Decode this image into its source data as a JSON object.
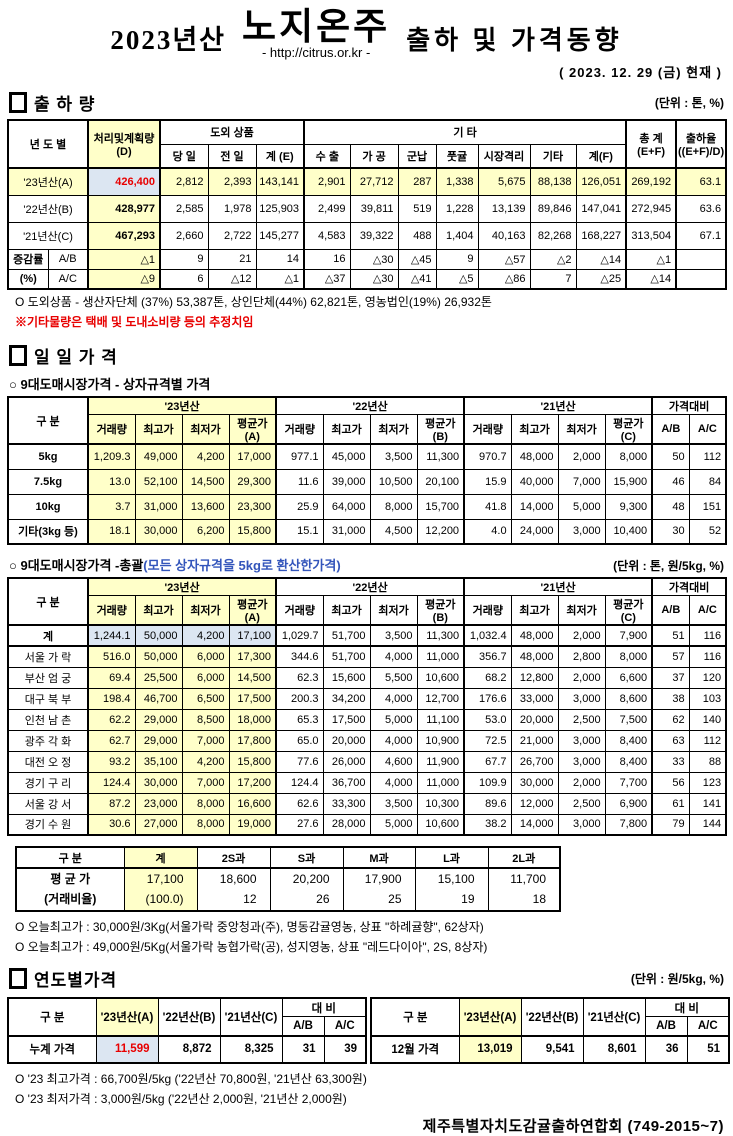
{
  "colors": {
    "highlight_yellow": "#FFFFC9",
    "highlight_blue": "#DCE6F2",
    "red": "#E80000",
    "blue": "#3355BB"
  },
  "header": {
    "title_year": "2023년산",
    "title_main": "노지온주",
    "title_url": "- http://citrus.or.kr -",
    "title_rest": "출하 및 가격동향",
    "date": "( 2023.  12.  29 (금) 현재 )"
  },
  "shipment": {
    "title": "출 하 량",
    "unit": "(단위 : 톤, %)",
    "table": {
      "head": [
        [
          {
            "t": "년 도 별",
            "cs": 2,
            "rs": 2
          },
          {
            "t": "처리및계획량\n(D)",
            "rs": 2
          },
          {
            "t": "도외 상품",
            "cs": 3
          },
          {
            "t": "기            타",
            "cs": 7
          },
          {
            "t": "총  계\n(E+F)",
            "rs": 2
          },
          {
            "t": "출하율\n((E+F)/D)",
            "rs": 2
          }
        ],
        [
          "당 일",
          "전 일",
          "계 (E)",
          "수 출",
          "가 공",
          "군납",
          "풋귤",
          "시장격리",
          "기타",
          "계(F)"
        ]
      ],
      "rows": [
        [
          {
            "t": "'23년산(A)",
            "cs": 2
          },
          "426,400",
          "2,812",
          "2,393",
          "143,141",
          "2,901",
          "27,712",
          "287",
          "1,338",
          "5,675",
          "88,138",
          "126,051",
          "269,192",
          "63.1"
        ],
        [
          {
            "t": "'22년산(B)",
            "cs": 2
          },
          "428,977",
          "2,585",
          "1,978",
          "125,903",
          "2,499",
          "39,811",
          "519",
          "1,228",
          "13,139",
          "89,846",
          "147,041",
          "272,945",
          "63.6"
        ],
        [
          {
            "t": "'21년산(C)",
            "cs": 2
          },
          "467,293",
          "2,660",
          "2,722",
          "145,277",
          "4,583",
          "39,322",
          "488",
          "1,404",
          "40,163",
          "82,268",
          "168,227",
          "313,504",
          "67.1"
        ],
        [
          "증감률",
          "A/B",
          "△1",
          "9",
          "21",
          "14",
          "16",
          "△30",
          "△45",
          "9",
          "△57",
          "△2",
          "△14",
          "△1",
          ""
        ],
        [
          "(%)",
          "A/C",
          "△9",
          "6",
          "△12",
          "△1",
          "△37",
          "△30",
          "△41",
          "△5",
          "△86",
          "7",
          "△25",
          "△14",
          ""
        ]
      ]
    },
    "note1": "O 도외상품 - 생산자단체 (37%) 53,387톤, 상인단체(44%) 62,821톤, 영농법인(19%) 26,932톤",
    "note2": "※기타물량은 택배 및 도내소비량 등의 추정치임"
  },
  "daily": {
    "title": "일 일 가 격",
    "box_heading": "○ 9대도매시장가격 - 상자규격별 가격",
    "box_table": {
      "head": [
        [
          {
            "t": "구  분",
            "rs": 2
          },
          {
            "t": "'23년산",
            "cs": 4
          },
          {
            "t": "'22년산",
            "cs": 4
          },
          {
            "t": "'21년산",
            "cs": 4
          },
          {
            "t": "가격대비",
            "cs": 2
          }
        ],
        [
          "거래량",
          "최고가",
          "최저가",
          "평균가(A)",
          "거래량",
          "최고가",
          "최저가",
          "평균가(B)",
          "거래량",
          "최고가",
          "최저가",
          "평균가(C)",
          "A/B",
          "A/C"
        ]
      ],
      "rows": [
        [
          "5kg",
          "1,209.3",
          "49,000",
          "4,200",
          "17,000",
          "977.1",
          "45,000",
          "3,500",
          "11,300",
          "970.7",
          "48,000",
          "2,000",
          "8,000",
          "50",
          "112"
        ],
        [
          "7.5kg",
          "13.0",
          "52,100",
          "14,500",
          "29,300",
          "11.6",
          "39,000",
          "10,500",
          "20,100",
          "15.9",
          "40,000",
          "7,000",
          "15,900",
          "46",
          "84"
        ],
        [
          "10kg",
          "3.7",
          "31,000",
          "13,600",
          "23,300",
          "25.9",
          "64,000",
          "8,000",
          "15,700",
          "41.8",
          "14,000",
          "5,000",
          "9,300",
          "48",
          "151"
        ],
        [
          "기타(3kg 등)",
          "18.1",
          "30,000",
          "6,200",
          "15,800",
          "15.1",
          "31,000",
          "4,500",
          "12,200",
          "4.0",
          "24,000",
          "3,000",
          "10,400",
          "30",
          "52"
        ]
      ]
    },
    "overall_heading": "○ 9대도매시장가격 -총괄",
    "overall_heading_note": "(모든 상자규격을 5kg로 환산한가격)",
    "overall_unit": "(단위 : 톤, 원/5kg, %)",
    "overall_table": {
      "head": [
        [
          {
            "t": "구  분",
            "rs": 2
          },
          {
            "t": "'23년산",
            "cs": 4
          },
          {
            "t": "'22년산",
            "cs": 4
          },
          {
            "t": "'21년산",
            "cs": 4
          },
          {
            "t": "가격대비",
            "cs": 2
          }
        ],
        [
          "거래량",
          "최고가",
          "최저가",
          "평균가(A)",
          "거래량",
          "최고가",
          "최저가",
          "평균가(B)",
          "거래량",
          "최고가",
          "최저가",
          "평균가(C)",
          "A/B",
          "A/C"
        ]
      ],
      "rows": [
        [
          "계",
          "1,244.1",
          "50,000",
          "4,200",
          "17,100",
          "1,029.7",
          "51,700",
          "3,500",
          "11,300",
          "1,032.4",
          "48,000",
          "2,000",
          "7,900",
          "51",
          "116"
        ],
        [
          "서울 가 락",
          "516.0",
          "50,000",
          "6,000",
          "17,300",
          "344.6",
          "51,700",
          "4,000",
          "11,000",
          "356.7",
          "48,000",
          "2,800",
          "8,000",
          "57",
          "116"
        ],
        [
          "부산 엄 궁",
          "69.4",
          "25,500",
          "6,000",
          "14,500",
          "62.3",
          "15,600",
          "5,500",
          "10,600",
          "68.2",
          "12,800",
          "2,000",
          "6,600",
          "37",
          "120"
        ],
        [
          "대구 북 부",
          "198.4",
          "46,700",
          "6,500",
          "17,500",
          "200.3",
          "34,200",
          "4,000",
          "12,700",
          "176.6",
          "33,000",
          "3,000",
          "8,600",
          "38",
          "103"
        ],
        [
          "인천 남 촌",
          "62.2",
          "29,000",
          "8,500",
          "18,000",
          "65.3",
          "17,500",
          "5,000",
          "11,100",
          "53.0",
          "20,000",
          "2,500",
          "7,500",
          "62",
          "140"
        ],
        [
          "광주 각 화",
          "62.7",
          "29,000",
          "7,000",
          "17,800",
          "65.0",
          "20,000",
          "4,000",
          "10,900",
          "72.5",
          "21,000",
          "3,000",
          "8,400",
          "63",
          "112"
        ],
        [
          "대전 오 정",
          "93.2",
          "35,100",
          "4,200",
          "15,800",
          "77.6",
          "26,000",
          "4,600",
          "11,900",
          "67.7",
          "26,700",
          "3,000",
          "8,400",
          "33",
          "88"
        ],
        [
          "경기 구 리",
          "124.4",
          "30,000",
          "7,000",
          "17,200",
          "124.4",
          "36,700",
          "4,000",
          "11,000",
          "109.9",
          "30,000",
          "2,000",
          "7,700",
          "56",
          "123"
        ],
        [
          "서울 강 서",
          "87.2",
          "23,000",
          "8,000",
          "16,600",
          "62.6",
          "33,300",
          "3,500",
          "10,300",
          "89.6",
          "12,000",
          "2,500",
          "6,900",
          "61",
          "141"
        ],
        [
          "경기 수 원",
          "30.6",
          "27,000",
          "8,000",
          "19,000",
          "27.6",
          "28,000",
          "5,000",
          "10,600",
          "38.2",
          "14,000",
          "3,000",
          "7,800",
          "79",
          "144"
        ]
      ]
    },
    "grade_table": {
      "head": [
        [
          "구  분",
          "계",
          "2S과",
          "S과",
          "M과",
          "L과",
          "2L과"
        ]
      ],
      "rows": [
        [
          "평 균 가\n(거래비율)",
          "17,100\n(100.0)",
          "18,600\n12",
          "20,200\n26",
          "17,900\n25",
          "15,100\n19",
          "11,700\n18"
        ]
      ]
    },
    "note1": "O 오늘최고가  : 30,000원/3Kg(서울가락 중앙청과(주), 명동감귤영농, 상표 \"하례귤향\", 62상자)",
    "note2": "O 오늘최고가  : 49,000원/5Kg(서울가락 농협가락(공), 성지영농, 상표 \"레드다이아\", 2S, 8상자)"
  },
  "yearly": {
    "title": "연도별가격",
    "unit": "(단위 : 원/5kg, %)",
    "left_table": {
      "head": [
        [
          {
            "t": "구        분",
            "rs": 2
          },
          {
            "t": "'23년산(A)",
            "rs": 2
          },
          {
            "t": "'22년산(B)",
            "rs": 2
          },
          {
            "t": "'21년산(C)",
            "rs": 2
          },
          {
            "t": "대    비",
            "cs": 2
          }
        ],
        [
          "A/B",
          "A/C"
        ]
      ],
      "rows": [
        [
          "누계 가격",
          "11,599",
          "8,872",
          "8,325",
          "31",
          "39"
        ]
      ]
    },
    "right_table": {
      "head": [
        [
          {
            "t": "구        분",
            "rs": 2
          },
          {
            "t": "'23년산(A)",
            "rs": 2
          },
          {
            "t": "'22년산(B)",
            "rs": 2
          },
          {
            "t": "'21년산(C)",
            "rs": 2
          },
          {
            "t": "대    비",
            "cs": 2
          }
        ],
        [
          "A/B",
          "A/C"
        ]
      ],
      "rows": [
        [
          "12월 가격",
          "13,019",
          "9,541",
          "8,601",
          "36",
          "51"
        ]
      ]
    },
    "note1": "O '23 최고가격 : 66,700원/5kg ('22년산 70,800원, '21년산 63,300원)",
    "note2": "O '23 최저가격 :   3,000원/5kg ('22년산  2,000원, '21년산  2,000원)"
  },
  "footer": {
    "org": "제주특별자치도감귤출하연합회 (749-2015~7)"
  }
}
